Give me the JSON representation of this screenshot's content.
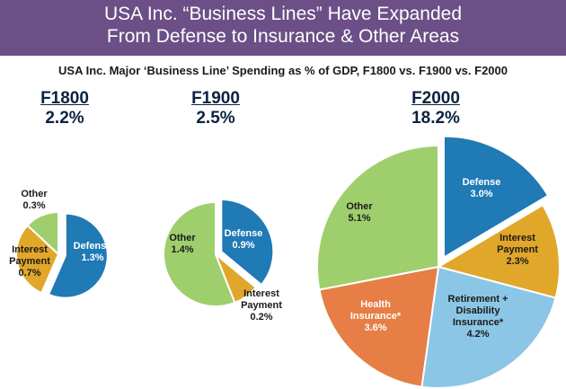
{
  "title": {
    "line1": "USA Inc. “Business Lines” Have Expanded",
    "line2": "From Defense to Insurance & Other Areas"
  },
  "subtitle": "USA Inc. Major ‘Business Line’ Spending as % of GDP, F1800 vs. F1900 vs. F2000",
  "colors": {
    "banner": "#6b4f86",
    "defense": "#1f7ab5",
    "interest": "#e0a72a",
    "other": "#9fcf6c",
    "health": "#e67e45",
    "retirement": "#8cc6e6"
  },
  "chart_data": [
    {
      "type": "pie",
      "title": "F1800",
      "total_label": "2.2%",
      "total": 2.2,
      "slices": [
        {
          "key": "defense",
          "name": "Defense",
          "value": 1.3,
          "label": "1.3%",
          "exploded": true
        },
        {
          "key": "interest",
          "name": "Interest Payment",
          "value": 0.7,
          "label": "0.7%"
        },
        {
          "key": "other",
          "name": "Other",
          "value": 0.3,
          "label": "0.3%"
        }
      ]
    },
    {
      "type": "pie",
      "title": "F1900",
      "total_label": "2.5%",
      "total": 2.5,
      "slices": [
        {
          "key": "defense",
          "name": "Defense",
          "value": 0.9,
          "label": "0.9%",
          "exploded": true
        },
        {
          "key": "interest",
          "name": "Interest Payment",
          "value": 0.2,
          "label": "0.2%"
        },
        {
          "key": "other",
          "name": "Other",
          "value": 1.4,
          "label": "1.4%"
        }
      ]
    },
    {
      "type": "pie",
      "title": "F2000",
      "total_label": "18.2%",
      "total": 18.2,
      "slices": [
        {
          "key": "defense",
          "name": "Defense",
          "value": 3.0,
          "label": "3.0%",
          "exploded": true
        },
        {
          "key": "interest",
          "name": "Interest Payment",
          "value": 2.3,
          "label": "2.3%"
        },
        {
          "key": "retirement",
          "name": "Retirement + Disability Insurance*",
          "value": 4.2,
          "label": "4.2%"
        },
        {
          "key": "health",
          "name": "Health Insurance*",
          "value": 3.6,
          "label": "3.6%"
        },
        {
          "key": "other",
          "name": "Other",
          "value": 5.1,
          "label": "5.1%"
        }
      ]
    }
  ]
}
